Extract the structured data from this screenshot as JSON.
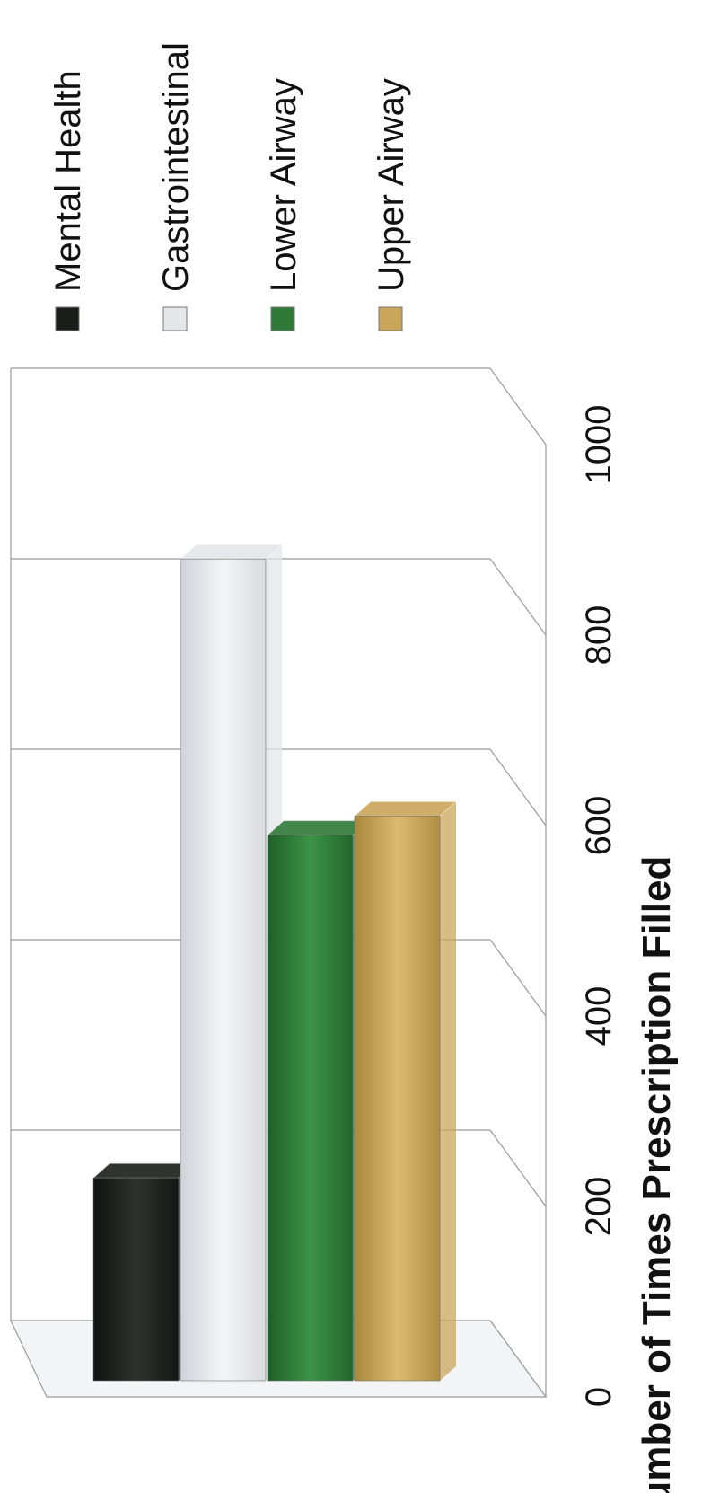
{
  "chart_data": {
    "type": "bar",
    "xlabel": "Number of Times Prescription Filled",
    "xlim": [
      0,
      1000
    ],
    "ticks": [
      "0",
      "200",
      "400",
      "600",
      "800",
      "1000"
    ],
    "tick_values": [
      0,
      200,
      400,
      600,
      800,
      1000
    ],
    "series": [
      {
        "name": "Mental Health",
        "value": 230,
        "color": "#1a1f1b"
      },
      {
        "name": "Gastrointestinal",
        "value": 880,
        "color": "#e4e6ea"
      },
      {
        "name": "Lower Airway",
        "value": 590,
        "color": "#2f7a38"
      },
      {
        "name": "Upper Airway",
        "value": 610,
        "color": "#c9a659"
      }
    ],
    "legend_position": "top",
    "grid": true,
    "orientation": "rotated-90-clockwise"
  }
}
